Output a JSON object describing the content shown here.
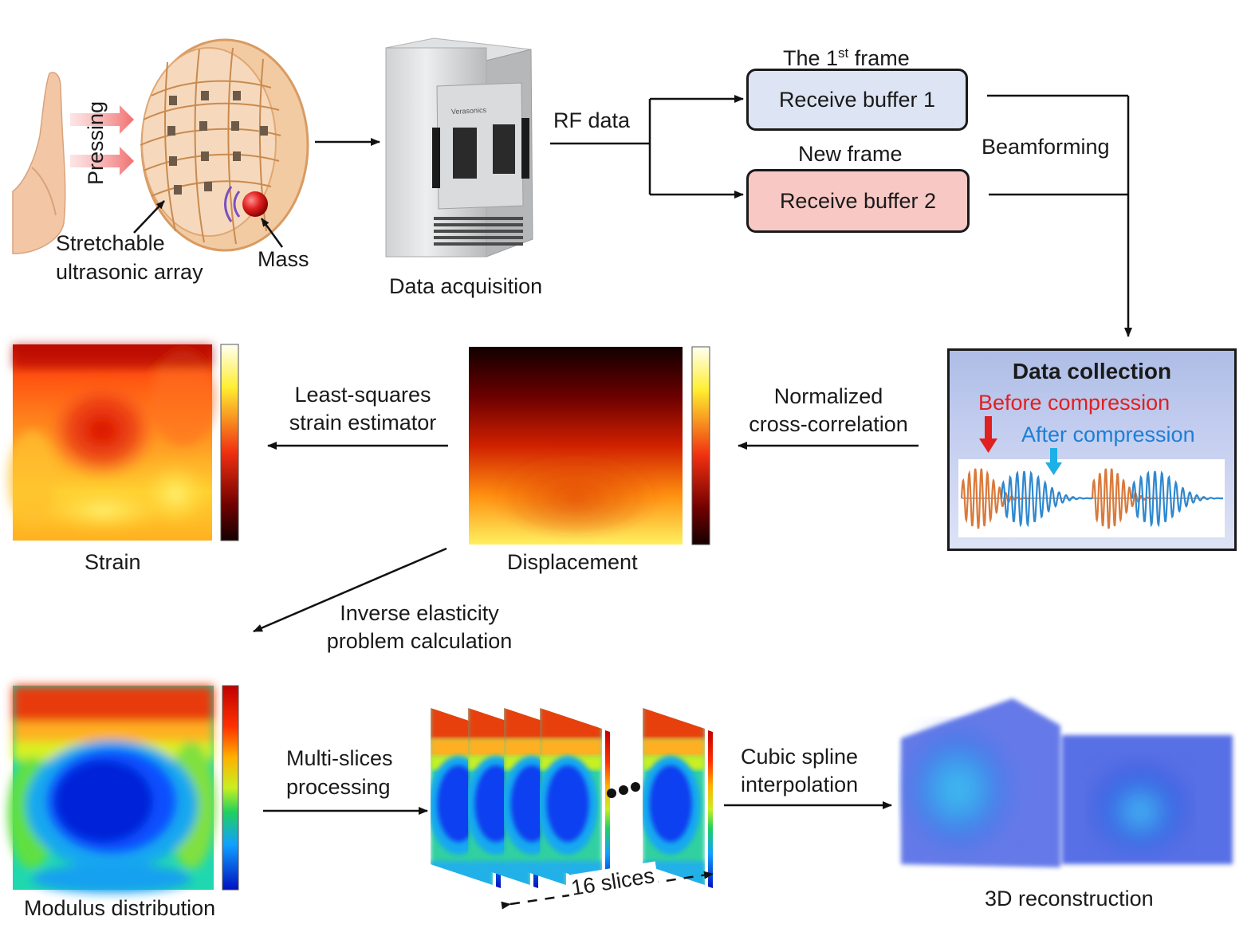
{
  "colors": {
    "before": "#e02020",
    "after": "#1c7fd6",
    "buffer1": "#dde4f3",
    "buffer2": "#f7c8c4"
  },
  "labels": {
    "pressing": "Pressing",
    "array_l1": "Stretchable",
    "array_l2": "ultrasonic array",
    "mass": "Mass",
    "data_acq": "Data acquisition",
    "rf_data": "RF data",
    "frame1_pre": "The 1",
    "frame1_sup": "st",
    "frame1_post": " frame",
    "new_frame": "New frame",
    "beamforming": "Beamforming",
    "ncc_l1": "Normalized",
    "ncc_l2": "cross-correlation",
    "ls_l1": "Least-squares",
    "ls_l2": "strain estimator",
    "strain": "Strain",
    "displacement": "Displacement",
    "inv_l1": "Inverse elasticity",
    "inv_l2": "problem calculation",
    "modulus": "Modulus distribution",
    "multi_l1": "Multi-slices",
    "multi_l2": "processing",
    "slices": "16 slices",
    "cubic_l1": "Cubic spline",
    "cubic_l2": "interpolation",
    "recon": "3D reconstruction"
  },
  "buffers": {
    "b1": "Receive buffer 1",
    "b2": "Receive buffer 2"
  },
  "collection": {
    "title": "Data collection",
    "before": "Before compression",
    "after": "After compression"
  },
  "device": {
    "brand": "Verasonics"
  }
}
